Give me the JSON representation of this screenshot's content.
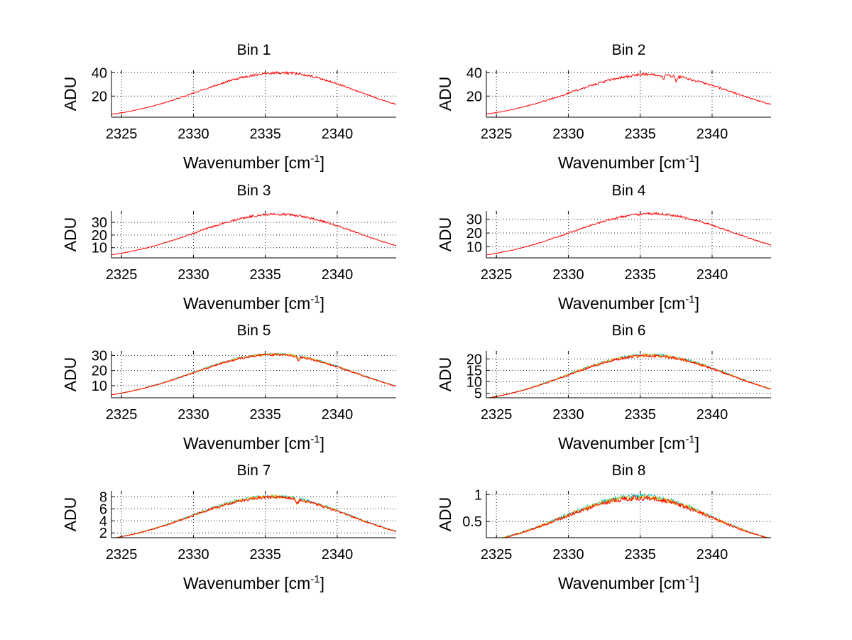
{
  "chart_data": [
    {
      "type": "line",
      "title": "Bin 1",
      "xlabel": "Wavenumber [cm",
      "xlabel_sup": "-1",
      "xlabel_end": "]",
      "ylabel": "ADU",
      "xlim": [
        2324.3,
        2344.1
      ],
      "ylim": [
        2,
        42
      ],
      "xticks": [
        2325,
        2330,
        2335,
        2340
      ],
      "yticks": [
        20,
        40
      ],
      "grid": true,
      "series_colors": [
        "#ff0000"
      ],
      "curve": {
        "peak": 40,
        "center": 2336.0,
        "sigma_left": 5.6,
        "sigma_right": 5.4,
        "noise": 1.0
      },
      "dip_at": []
    },
    {
      "type": "line",
      "title": "Bin 2",
      "xlabel": "Wavenumber [cm",
      "xlabel_sup": "-1",
      "xlabel_end": "]",
      "ylabel": "ADU",
      "xlim": [
        2324.3,
        2344.1
      ],
      "ylim": [
        2,
        42
      ],
      "xticks": [
        2325,
        2330,
        2335,
        2340
      ],
      "yticks": [
        20,
        40
      ],
      "grid": true,
      "series_colors": [
        "#ff0000"
      ],
      "curve": {
        "peak": 38.5,
        "center": 2335.8,
        "sigma_left": 5.6,
        "sigma_right": 5.6,
        "noise": 1.2
      },
      "dip_at": [
        2336.6,
        2337.5
      ]
    },
    {
      "type": "line",
      "title": "Bin 3",
      "xlabel": "Wavenumber [cm",
      "xlabel_sup": "-1",
      "xlabel_end": "]",
      "ylabel": "ADU",
      "xlim": [
        2324.3,
        2344.1
      ],
      "ylim": [
        2,
        39
      ],
      "xticks": [
        2325,
        2330,
        2335,
        2340
      ],
      "yticks": [
        10,
        20,
        30
      ],
      "grid": true,
      "series_colors": [
        "#ff0000"
      ],
      "curve": {
        "peak": 36.5,
        "center": 2335.8,
        "sigma_left": 5.6,
        "sigma_right": 5.5,
        "noise": 0.9
      },
      "dip_at": []
    },
    {
      "type": "line",
      "title": "Bin 4",
      "xlabel": "Wavenumber [cm",
      "xlabel_sup": "-1",
      "xlabel_end": "]",
      "ylabel": "ADU",
      "xlim": [
        2324.3,
        2344.1
      ],
      "ylim": [
        2,
        36
      ],
      "xticks": [
        2325,
        2330,
        2335,
        2340
      ],
      "yticks": [
        10,
        20,
        30
      ],
      "grid": true,
      "series_colors": [
        "#ff0000"
      ],
      "curve": {
        "peak": 34,
        "center": 2335.8,
        "sigma_left": 5.6,
        "sigma_right": 5.6,
        "noise": 0.8
      },
      "dip_at": []
    },
    {
      "type": "line",
      "title": "Bin 5",
      "xlabel": "Wavenumber [cm",
      "xlabel_sup": "-1",
      "xlabel_end": "]",
      "ylabel": "ADU",
      "xlim": [
        2324.3,
        2344.1
      ],
      "ylim": [
        2,
        33
      ],
      "xticks": [
        2325,
        2330,
        2335,
        2340
      ],
      "yticks": [
        10,
        20,
        30
      ],
      "grid": true,
      "series_colors": [
        "#00c0c0",
        "#ffcc00",
        "#ff0000"
      ],
      "curve": {
        "peak": 31,
        "center": 2335.6,
        "sigma_left": 5.6,
        "sigma_right": 5.6,
        "noise": 0.7
      },
      "dip_at": [
        2337.3
      ]
    },
    {
      "type": "line",
      "title": "Bin 6",
      "xlabel": "Wavenumber [cm",
      "xlabel_sup": "-1",
      "xlabel_end": "]",
      "ylabel": "ADU",
      "xlim": [
        2324.3,
        2344.1
      ],
      "ylim": [
        3,
        23.5
      ],
      "xticks": [
        2325,
        2330,
        2335,
        2340
      ],
      "yticks": [
        5,
        10,
        15,
        20
      ],
      "grid": true,
      "series_colors": [
        "#00c0c0",
        "#ffcc00",
        "#ff0000"
      ],
      "curve": {
        "peak": 21.8,
        "center": 2335.6,
        "sigma_left": 5.6,
        "sigma_right": 5.6,
        "noise": 0.6
      },
      "dip_at": []
    },
    {
      "type": "line",
      "title": "Bin 7",
      "xlabel": "Wavenumber [cm",
      "xlabel_sup": "-1",
      "xlabel_end": "]",
      "ylabel": "ADU",
      "xlim": [
        2324.3,
        2344.1
      ],
      "ylim": [
        1.2,
        9
      ],
      "xticks": [
        2325,
        2330,
        2335,
        2340
      ],
      "yticks": [
        2,
        4,
        6,
        8
      ],
      "grid": true,
      "series_colors": [
        "#00c0c0",
        "#ffcc00",
        "#ff0000"
      ],
      "curve": {
        "peak": 8.1,
        "center": 2335.5,
        "sigma_left": 5.6,
        "sigma_right": 5.4,
        "noise": 0.25
      },
      "dip_at": [
        2337.2
      ]
    },
    {
      "type": "line",
      "title": "Bin 8",
      "xlabel": "Wavenumber [cm",
      "xlabel_sup": "-1",
      "xlabel_end": "]",
      "ylabel": "ADU",
      "xlim": [
        2324.3,
        2344.1
      ],
      "ylim": [
        0.2,
        1.07
      ],
      "xticks": [
        2325,
        2330,
        2335,
        2340
      ],
      "yticks": [
        0.5,
        1
      ],
      "grid": true,
      "series_colors": [
        "#00c0c0",
        "#ffcc00",
        "#ff0000"
      ],
      "curve": {
        "peak": 0.97,
        "center": 2335.0,
        "sigma_left": 5.4,
        "sigma_right": 5.0,
        "noise": 0.045
      },
      "dip_at": []
    }
  ]
}
